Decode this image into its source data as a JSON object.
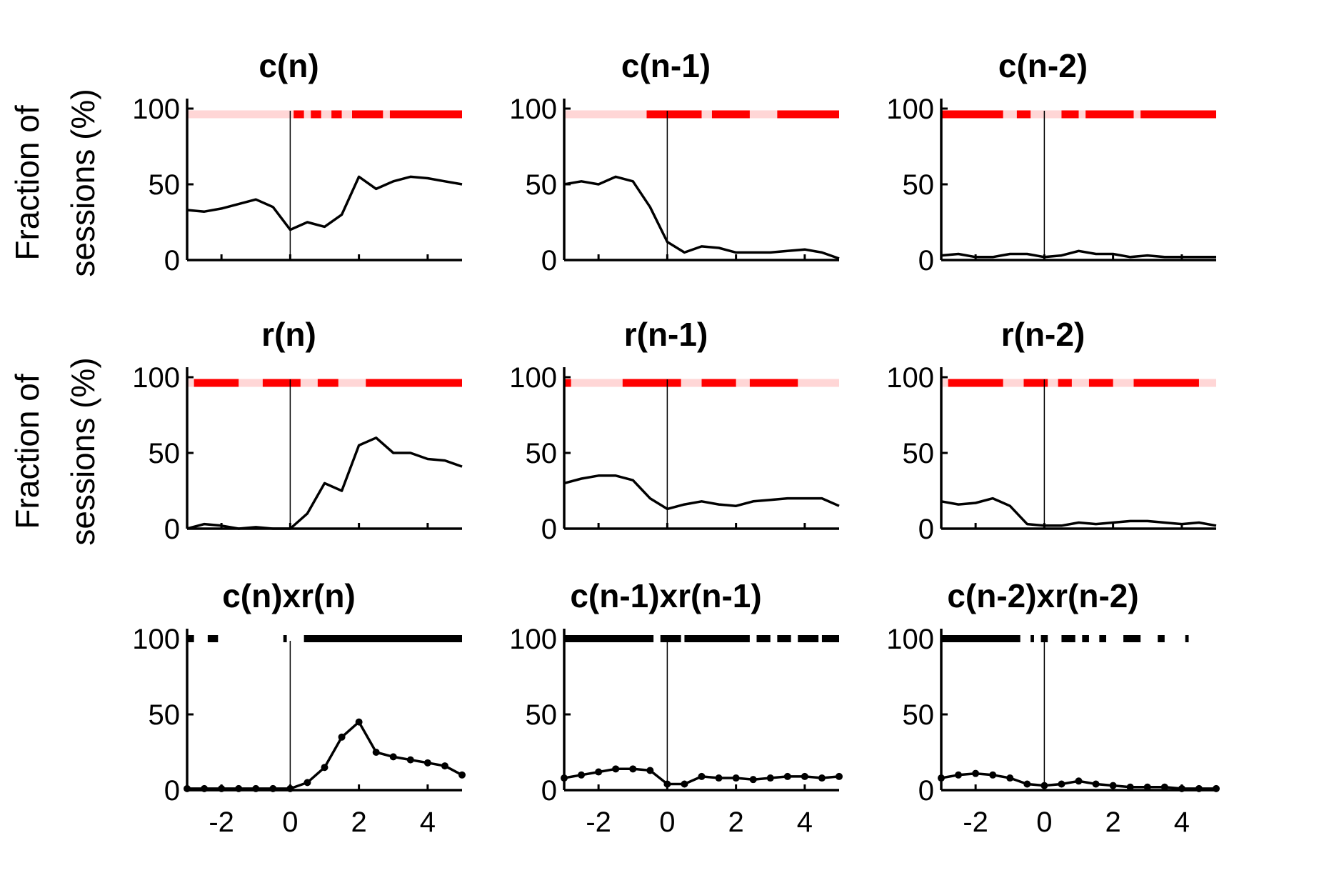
{
  "figure": {
    "ylabel_line1": "Fraction of",
    "ylabel_line2": "sessions (%)",
    "colors": {
      "line": "#000000",
      "sig_strong": "#ff0000",
      "sig_weak": "#ffd6d6",
      "sig_black": "#000000"
    }
  },
  "chart_data": [
    {
      "type": "line",
      "title": "c(n)",
      "xlabel": "",
      "ylabel": "Fraction of sessions (%)",
      "xlim": [
        -3,
        5
      ],
      "ylim": [
        0,
        100
      ],
      "xticks": [
        -2,
        0,
        2,
        4
      ],
      "yticks": [
        0,
        50,
        100
      ],
      "x": [
        -3,
        -2.5,
        -2,
        -1.5,
        -1,
        -0.5,
        0,
        0.5,
        1,
        1.5,
        2,
        2.5,
        3,
        3.5,
        4,
        4.5,
        5
      ],
      "series": [
        {
          "values": [
            33,
            32,
            34,
            37,
            40,
            35,
            20,
            25,
            22,
            30,
            55,
            47,
            52,
            55,
            54,
            52,
            50
          ]
        }
      ],
      "sig_marker": "red",
      "sig_spans": [
        [
          0.1,
          0.4
        ],
        [
          0.6,
          0.9
        ],
        [
          1.2,
          1.5
        ],
        [
          1.8,
          2.7
        ],
        [
          2.9,
          5
        ]
      ]
    },
    {
      "type": "line",
      "title": "c(n-1)",
      "xlabel": "",
      "ylabel": "",
      "xlim": [
        -3,
        5
      ],
      "ylim": [
        0,
        100
      ],
      "xticks": [
        -2,
        0,
        2,
        4
      ],
      "yticks": [
        0,
        50,
        100
      ],
      "x": [
        -3,
        -2.5,
        -2,
        -1.5,
        -1,
        -0.5,
        0,
        0.5,
        1,
        1.5,
        2,
        2.5,
        3,
        3.5,
        4,
        4.5,
        5
      ],
      "series": [
        {
          "values": [
            50,
            52,
            50,
            55,
            52,
            35,
            12,
            5,
            9,
            8,
            5,
            5,
            5,
            6,
            7,
            5,
            1
          ]
        }
      ],
      "sig_marker": "red",
      "sig_spans": [
        [
          -0.6,
          1.0
        ],
        [
          1.3,
          2.4
        ],
        [
          3.2,
          5
        ]
      ]
    },
    {
      "type": "line",
      "title": "c(n-2)",
      "xlabel": "",
      "ylabel": "",
      "xlim": [
        -3,
        5
      ],
      "ylim": [
        0,
        100
      ],
      "xticks": [
        -2,
        0,
        2,
        4
      ],
      "yticks": [
        0,
        50,
        100
      ],
      "x": [
        -3,
        -2.5,
        -2,
        -1.5,
        -1,
        -0.5,
        0,
        0.5,
        1,
        1.5,
        2,
        2.5,
        3,
        3.5,
        4,
        4.5,
        5
      ],
      "series": [
        {
          "values": [
            3,
            4,
            2,
            2,
            4,
            4,
            2,
            3,
            6,
            4,
            4,
            2,
            3,
            2,
            2,
            2,
            2
          ]
        }
      ],
      "sig_marker": "red",
      "sig_spans": [
        [
          -3,
          -1.2
        ],
        [
          -0.8,
          -0.4
        ],
        [
          0.5,
          1.0
        ],
        [
          1.2,
          2.6
        ],
        [
          2.8,
          5
        ]
      ]
    },
    {
      "type": "line",
      "title": "r(n)",
      "xlabel": "",
      "ylabel": "Fraction of sessions (%)",
      "xlim": [
        -3,
        5
      ],
      "ylim": [
        0,
        100
      ],
      "xticks": [
        -2,
        0,
        2,
        4
      ],
      "yticks": [
        0,
        50,
        100
      ],
      "x": [
        -3,
        -2.5,
        -2,
        -1.5,
        -1,
        -0.5,
        0,
        0.5,
        1,
        1.5,
        2,
        2.5,
        3,
        3.5,
        4,
        4.5,
        5
      ],
      "series": [
        {
          "values": [
            0,
            3,
            2,
            0,
            1,
            0,
            0,
            10,
            30,
            25,
            55,
            60,
            50,
            50,
            46,
            45,
            41
          ]
        }
      ],
      "sig_marker": "red",
      "sig_spans": [
        [
          -2.8,
          -1.5
        ],
        [
          -0.8,
          0.3
        ],
        [
          0.8,
          1.4
        ],
        [
          2.2,
          5
        ]
      ]
    },
    {
      "type": "line",
      "title": "r(n-1)",
      "xlabel": "",
      "ylabel": "",
      "xlim": [
        -3,
        5
      ],
      "ylim": [
        0,
        100
      ],
      "xticks": [
        -2,
        0,
        2,
        4
      ],
      "yticks": [
        0,
        50,
        100
      ],
      "x": [
        -3,
        -2.5,
        -2,
        -1.5,
        -1,
        -0.5,
        0,
        0.5,
        1,
        1.5,
        2,
        2.5,
        3,
        3.5,
        4,
        4.5,
        5
      ],
      "series": [
        {
          "values": [
            30,
            33,
            35,
            35,
            32,
            20,
            13,
            16,
            18,
            16,
            15,
            18,
            19,
            20,
            20,
            20,
            15
          ]
        }
      ],
      "sig_marker": "red",
      "sig_spans": [
        [
          -3,
          -2.8
        ],
        [
          -1.3,
          0.4
        ],
        [
          1.0,
          2.0
        ],
        [
          2.4,
          3.8
        ]
      ]
    },
    {
      "type": "line",
      "title": "r(n-2)",
      "xlabel": "",
      "ylabel": "",
      "xlim": [
        -3,
        5
      ],
      "ylim": [
        0,
        100
      ],
      "xticks": [
        -2,
        0,
        2,
        4
      ],
      "yticks": [
        0,
        50,
        100
      ],
      "x": [
        -3,
        -2.5,
        -2,
        -1.5,
        -1,
        -0.5,
        0,
        0.5,
        1,
        1.5,
        2,
        2.5,
        3,
        3.5,
        4,
        4.5,
        5
      ],
      "series": [
        {
          "values": [
            18,
            16,
            17,
            20,
            15,
            3,
            2,
            2,
            4,
            3,
            4,
            5,
            5,
            4,
            3,
            4,
            2
          ]
        }
      ],
      "sig_marker": "red",
      "sig_spans": [
        [
          -2.8,
          -1.2
        ],
        [
          -0.6,
          0.1
        ],
        [
          0.4,
          0.8
        ],
        [
          1.3,
          2.0
        ],
        [
          2.6,
          4.5
        ]
      ]
    },
    {
      "type": "line",
      "title": "c(n)xr(n)",
      "xlabel": "",
      "ylabel": "",
      "xlim": [
        -3,
        5
      ],
      "ylim": [
        0,
        100
      ],
      "xticks": [
        -2,
        0,
        2,
        4
      ],
      "yticks": [
        0,
        50,
        100
      ],
      "x": [
        -3,
        -2.5,
        -2,
        -1.5,
        -1,
        -0.5,
        0,
        0.5,
        1,
        1.5,
        2,
        2.5,
        3,
        3.5,
        4,
        4.5,
        5
      ],
      "series": [
        {
          "values": [
            1,
            1,
            1,
            1,
            1,
            1,
            1,
            5,
            15,
            35,
            45,
            25,
            22,
            20,
            18,
            16,
            10
          ]
        }
      ],
      "sig_marker": "black",
      "sig_spans": [
        [
          -3,
          -2.8
        ],
        [
          -2.4,
          -2.1
        ],
        [
          -0.2,
          -0.1
        ],
        [
          0.4,
          5
        ]
      ]
    },
    {
      "type": "line",
      "title": "c(n-1)xr(n-1)",
      "xlabel": "",
      "ylabel": "",
      "xlim": [
        -3,
        5
      ],
      "ylim": [
        0,
        100
      ],
      "xticks": [
        -2,
        0,
        2,
        4
      ],
      "yticks": [
        0,
        50,
        100
      ],
      "x": [
        -3,
        -2.5,
        -2,
        -1.5,
        -1,
        -0.5,
        0,
        0.5,
        1,
        1.5,
        2,
        2.5,
        3,
        3.5,
        4,
        4.5,
        5
      ],
      "series": [
        {
          "values": [
            8,
            10,
            12,
            14,
            14,
            13,
            4,
            4,
            9,
            8,
            8,
            7,
            8,
            9,
            9,
            8,
            9
          ]
        }
      ],
      "sig_marker": "black",
      "sig_spans": [
        [
          -3,
          -0.4
        ],
        [
          -0.2,
          0.4
        ],
        [
          0.5,
          2.4
        ],
        [
          2.6,
          3.0
        ],
        [
          3.2,
          3.6
        ],
        [
          3.8,
          4.4
        ],
        [
          4.5,
          5
        ]
      ]
    },
    {
      "type": "line",
      "title": "c(n-2)xr(n-2)",
      "xlabel": "",
      "ylabel": "",
      "xlim": [
        -3,
        5
      ],
      "ylim": [
        0,
        100
      ],
      "xticks": [
        -2,
        0,
        2,
        4
      ],
      "yticks": [
        0,
        50,
        100
      ],
      "x": [
        -3,
        -2.5,
        -2,
        -1.5,
        -1,
        -0.5,
        0,
        0.5,
        1,
        1.5,
        2,
        2.5,
        3,
        3.5,
        4,
        4.5,
        5
      ],
      "series": [
        {
          "values": [
            8,
            10,
            11,
            10,
            8,
            4,
            3,
            4,
            6,
            4,
            3,
            2,
            2,
            2,
            1,
            1,
            1
          ]
        }
      ],
      "sig_marker": "black",
      "sig_spans": [
        [
          -3,
          -0.7
        ],
        [
          -0.4,
          -0.3
        ],
        [
          -0.1,
          0.1
        ],
        [
          0.5,
          0.9
        ],
        [
          1.1,
          1.3
        ],
        [
          1.6,
          1.8
        ],
        [
          2.3,
          2.8
        ],
        [
          3.3,
          3.5
        ],
        [
          4.1,
          4.2
        ]
      ]
    }
  ]
}
